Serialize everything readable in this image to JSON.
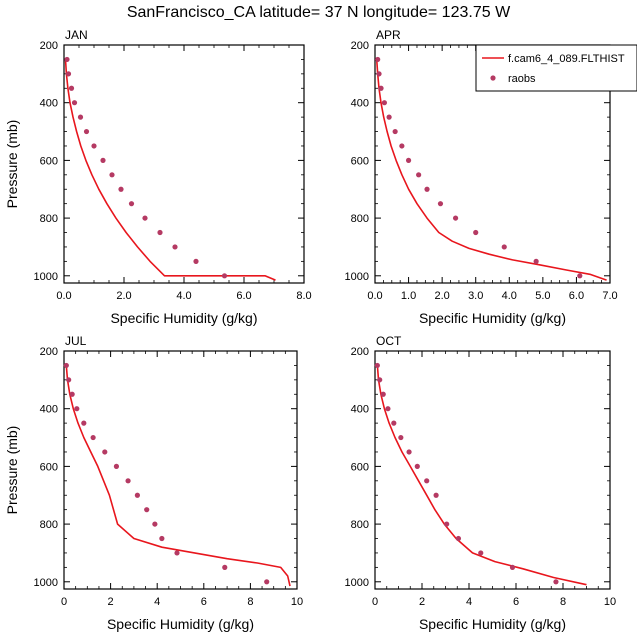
{
  "title": "SanFrancisco_CA  latitude= 37 N longitude= 123.75 W",
  "colors": {
    "model": "#e8161d",
    "obs": "#b53a63",
    "axis": "#000000"
  },
  "legend": {
    "entries": [
      "f.cam6_4_089.FLTHIST",
      "raobs"
    ],
    "placement": "top-right of APR panel"
  },
  "chart_data": [
    {
      "type": "line",
      "panel": "JAN",
      "xlabel": "Specific Humidity (g/kg)",
      "ylabel": "Pressure (mb)",
      "xlim": [
        0,
        8
      ],
      "ylim": [
        200,
        1025
      ],
      "y_inverted": true,
      "xticks": [
        "0.0",
        "2.0",
        "4.0",
        "6.0",
        "8.0"
      ],
      "yticks": [
        "200",
        "400",
        "600",
        "800",
        "1000"
      ],
      "series": [
        {
          "name": "f.cam6_4_089.FLTHIST",
          "style": "line",
          "x": [
            0.05,
            0.08,
            0.13,
            0.2,
            0.3,
            0.42,
            0.56,
            0.73,
            0.93,
            1.16,
            1.43,
            1.73,
            2.07,
            2.45,
            2.87,
            3.35,
            3.9,
            4.55,
            5.3,
            6.05,
            6.7,
            7.05
          ],
          "y": [
            250,
            300,
            350,
            400,
            450,
            500,
            550,
            600,
            650,
            700,
            750,
            800,
            850,
            900,
            950,
            1000,
            1000,
            1000,
            1000,
            1000,
            1000,
            1015
          ]
        },
        {
          "name": "raobs",
          "style": "markers",
          "x": [
            0.1,
            0.15,
            0.25,
            0.35,
            0.55,
            0.75,
            1.0,
            1.3,
            1.6,
            1.9,
            2.25,
            2.7,
            3.2,
            3.7,
            4.4,
            5.35
          ],
          "y": [
            250,
            300,
            350,
            400,
            450,
            500,
            550,
            600,
            650,
            700,
            750,
            800,
            850,
            900,
            950,
            1000
          ]
        }
      ]
    },
    {
      "type": "line",
      "panel": "APR",
      "xlabel": "Specific Humidity (g/kg)",
      "ylabel": "",
      "xlim": [
        0,
        7
      ],
      "ylim": [
        200,
        1025
      ],
      "y_inverted": true,
      "xticks": [
        "0.0",
        "1.0",
        "2.0",
        "3.0",
        "4.0",
        "5.0",
        "6.0",
        "7.0"
      ],
      "yticks": [
        "200",
        "400",
        "600",
        "800",
        "1000"
      ],
      "series": [
        {
          "name": "f.cam6_4_089.FLTHIST",
          "style": "line",
          "x": [
            0.05,
            0.08,
            0.12,
            0.18,
            0.26,
            0.36,
            0.48,
            0.63,
            0.8,
            1.0,
            1.25,
            1.55,
            1.9,
            2.3,
            2.8,
            3.4,
            4.1,
            4.9,
            5.7,
            6.4,
            6.9
          ],
          "y": [
            250,
            300,
            350,
            400,
            450,
            500,
            550,
            600,
            650,
            700,
            750,
            800,
            850,
            880,
            905,
            925,
            945,
            962,
            980,
            995,
            1015
          ]
        },
        {
          "name": "raobs",
          "style": "markers",
          "x": [
            0.08,
            0.12,
            0.18,
            0.28,
            0.42,
            0.6,
            0.8,
            1.0,
            1.3,
            1.55,
            1.95,
            2.4,
            3.0,
            3.85,
            4.8,
            6.1
          ],
          "y": [
            250,
            300,
            350,
            400,
            450,
            500,
            550,
            600,
            650,
            700,
            750,
            800,
            850,
            900,
            950,
            1000
          ]
        }
      ]
    },
    {
      "type": "line",
      "panel": "JUL",
      "xlabel": "Specific Humidity (g/kg)",
      "ylabel": "Pressure (mb)",
      "xlim": [
        0,
        10
      ],
      "ylim": [
        200,
        1025
      ],
      "y_inverted": true,
      "xticks": [
        "0",
        "2",
        "4",
        "6",
        "8",
        "10"
      ],
      "yticks": [
        "200",
        "400",
        "600",
        "800",
        "1000"
      ],
      "series": [
        {
          "name": "f.cam6_4_089.FLTHIST",
          "style": "line",
          "x": [
            0.1,
            0.15,
            0.25,
            0.4,
            0.6,
            0.85,
            1.15,
            1.45,
            1.7,
            1.95,
            2.3,
            3.0,
            4.2,
            5.6,
            7.0,
            8.3,
            9.3,
            9.6,
            9.7
          ],
          "y": [
            250,
            300,
            350,
            400,
            450,
            500,
            550,
            600,
            650,
            700,
            800,
            850,
            880,
            900,
            920,
            935,
            950,
            980,
            1015
          ]
        },
        {
          "name": "raobs",
          "style": "markers",
          "x": [
            0.1,
            0.2,
            0.35,
            0.55,
            0.85,
            1.25,
            1.75,
            2.25,
            2.75,
            3.15,
            3.55,
            3.9,
            4.2,
            4.85,
            6.9,
            8.7
          ],
          "y": [
            250,
            300,
            350,
            400,
            450,
            500,
            550,
            600,
            650,
            700,
            750,
            800,
            850,
            900,
            950,
            1000
          ]
        }
      ]
    },
    {
      "type": "line",
      "panel": "OCT",
      "xlabel": "Specific Humidity (g/kg)",
      "ylabel": "",
      "xlim": [
        0,
        10
      ],
      "ylim": [
        200,
        1025
      ],
      "y_inverted": true,
      "xticks": [
        "0",
        "2",
        "4",
        "6",
        "8",
        "10"
      ],
      "yticks": [
        "200",
        "400",
        "600",
        "800",
        "1000"
      ],
      "series": [
        {
          "name": "f.cam6_4_089.FLTHIST",
          "style": "line",
          "x": [
            0.1,
            0.15,
            0.25,
            0.4,
            0.6,
            0.85,
            1.15,
            1.5,
            1.85,
            2.2,
            2.55,
            2.95,
            3.45,
            4.15,
            5.1,
            6.3,
            7.6,
            9.0
          ],
          "y": [
            250,
            300,
            350,
            400,
            450,
            500,
            550,
            600,
            650,
            700,
            750,
            800,
            850,
            900,
            930,
            955,
            985,
            1010
          ]
        },
        {
          "name": "raobs",
          "style": "markers",
          "x": [
            0.1,
            0.2,
            0.35,
            0.55,
            0.8,
            1.1,
            1.45,
            1.8,
            2.2,
            2.6,
            3.05,
            3.55,
            4.5,
            5.85,
            7.7
          ],
          "y": [
            250,
            300,
            350,
            400,
            450,
            500,
            550,
            600,
            650,
            700,
            800,
            850,
            900,
            950,
            1000
          ]
        }
      ]
    }
  ]
}
